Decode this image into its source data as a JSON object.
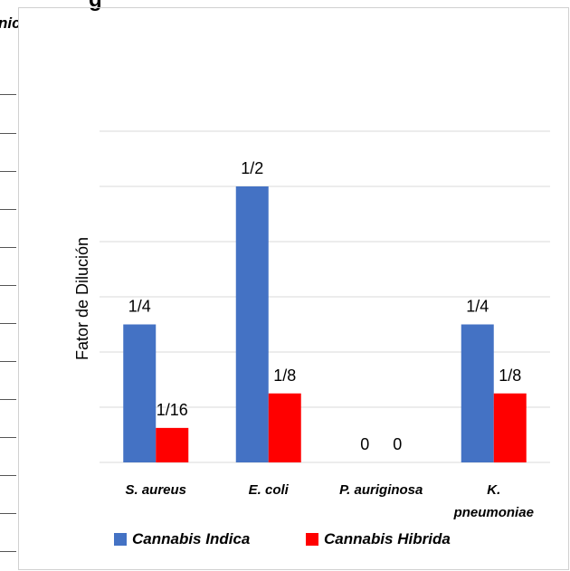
{
  "partial_title": "g",
  "partial_left_text": "nic",
  "chart_data": {
    "type": "bar",
    "categories": [
      [
        "S. aureus"
      ],
      [
        "E. coli"
      ],
      [
        "P. auriginosa"
      ],
      [
        "K.",
        "pneumoniae"
      ]
    ],
    "ylabel": "Fator de Dilución",
    "xlabel": "",
    "series": [
      {
        "name": "Cannabis Indica",
        "color": "#4472C4",
        "values": [
          0.25,
          0.5,
          0,
          0.25
        ],
        "labels": [
          "1/4",
          "1/2",
          "0",
          "1/4"
        ]
      },
      {
        "name": "Cannabis Hibrida",
        "color": "#FF0000",
        "values": [
          0.0625,
          0.125,
          0,
          0.125
        ],
        "labels": [
          "1/16",
          "1/8",
          "0",
          "1/8"
        ]
      }
    ],
    "ylim": [
      0,
      0.6
    ],
    "grid": true,
    "legend": "bottom"
  }
}
